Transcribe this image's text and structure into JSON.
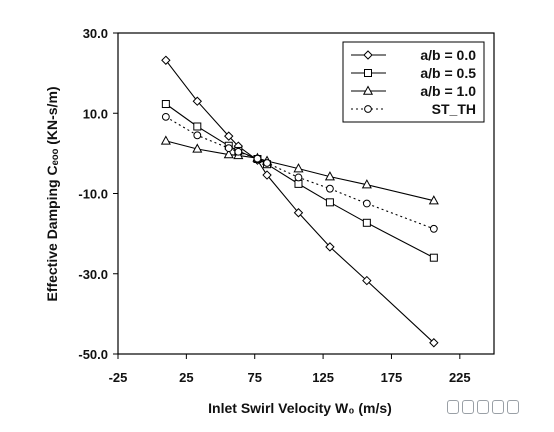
{
  "chart_data": {
    "type": "line",
    "title": "",
    "xlabel": "Inlet Swirl Velocity W₀ (m/s)",
    "ylabel": "Effective Damping Cₑₒₒ (KN-s/m)",
    "xlim": [
      -25,
      250
    ],
    "ylim": [
      -50,
      30
    ],
    "xticks": [
      -25,
      25,
      75,
      125,
      175,
      225
    ],
    "xtick_labels": [
      "-25",
      "25",
      "75",
      "125",
      "175",
      "225"
    ],
    "yticks": [
      30,
      10,
      -10,
      -30,
      -50
    ],
    "ytick_labels": [
      "30.0",
      "10.0",
      "-10.0",
      "-30.0",
      "-50.0"
    ],
    "grid": false,
    "legend_position": "top-right",
    "series": [
      {
        "name": "a/b = 0.0",
        "marker": "diamond",
        "style": "solid",
        "x": [
          10,
          33,
          56,
          63,
          77,
          84,
          107,
          130,
          157,
          206
        ],
        "y": [
          23.2,
          13.0,
          4.3,
          1.8,
          -1.7,
          -5.4,
          -14.8,
          -23.3,
          -31.7,
          -47.2
        ]
      },
      {
        "name": "a/b = 0.5",
        "marker": "square",
        "style": "solid",
        "x": [
          10,
          33,
          56,
          63,
          77,
          84,
          107,
          130,
          157,
          206
        ],
        "y": [
          12.3,
          6.7,
          1.9,
          0.6,
          -1.4,
          -2.7,
          -7.6,
          -12.2,
          -17.3,
          -26.0
        ]
      },
      {
        "name": "a/b = 1.0",
        "marker": "triangle",
        "style": "solid",
        "x": [
          10,
          33,
          56,
          63,
          77,
          84,
          107,
          130,
          157,
          206
        ],
        "y": [
          3.1,
          1.1,
          -0.3,
          -0.5,
          -1.2,
          -1.9,
          -3.8,
          -5.8,
          -7.8,
          -11.8
        ]
      },
      {
        "name": "ST_TH",
        "marker": "circle",
        "style": "dotted",
        "x": [
          10,
          33,
          56,
          63,
          77,
          84,
          107,
          130,
          157,
          206
        ],
        "y": [
          9.1,
          4.5,
          1.3,
          0.4,
          -1.3,
          -2.4,
          -6.0,
          -8.8,
          -12.5,
          -18.8
        ]
      }
    ]
  },
  "watermark": {
    "blocks": 5
  }
}
